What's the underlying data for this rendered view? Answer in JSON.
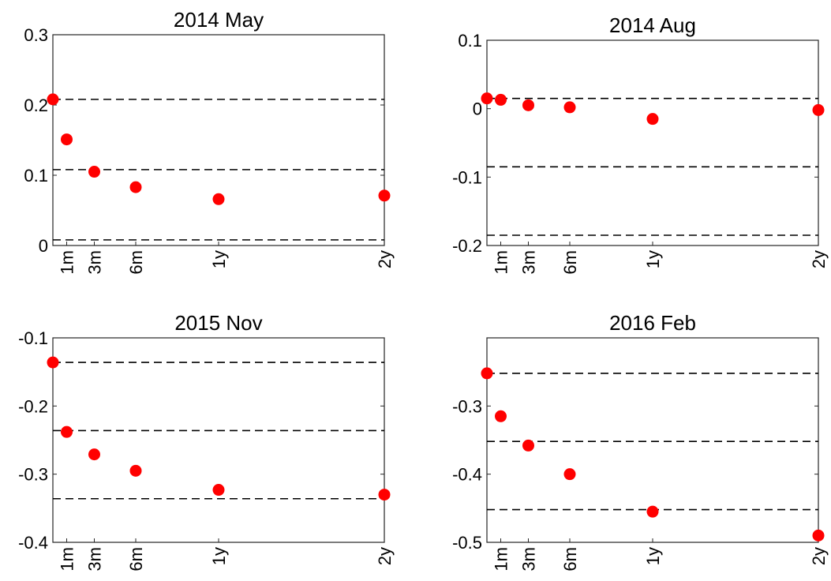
{
  "chart_data": [
    {
      "type": "scatter",
      "title": "2014 May",
      "x": [
        "1m",
        "3m",
        "6m",
        "1y",
        "2y"
      ],
      "xticks": [
        "1m",
        "3m",
        "6m",
        "1y",
        "2y"
      ],
      "points": [
        {
          "x": 0,
          "y": 0.208
        },
        {
          "x": 1,
          "y": 0.151
        },
        {
          "x": 3,
          "y": 0.105
        },
        {
          "x": 6,
          "y": 0.083
        },
        {
          "x": 12,
          "y": 0.066
        },
        {
          "x": 24,
          "y": 0.071
        }
      ],
      "hlines": [
        0.208,
        0.108,
        0.008
      ],
      "ylim": [
        0,
        0.3
      ],
      "yticks": [
        0,
        0.1,
        0.2,
        0.3
      ],
      "ytick_labels": [
        "0",
        "0.1",
        "0.2",
        "0.3"
      ],
      "color": "#ff0000"
    },
    {
      "type": "scatter",
      "title": "2014 Aug",
      "x": [
        "1m",
        "3m",
        "6m",
        "1y",
        "2y"
      ],
      "xticks": [
        "1m",
        "3m",
        "6m",
        "1y",
        "2y"
      ],
      "points": [
        {
          "x": 0,
          "y": 0.015
        },
        {
          "x": 1,
          "y": 0.013
        },
        {
          "x": 3,
          "y": 0.005
        },
        {
          "x": 6,
          "y": 0.002
        },
        {
          "x": 12,
          "y": -0.015
        },
        {
          "x": 24,
          "y": -0.002
        }
      ],
      "hlines": [
        0.015,
        -0.085,
        -0.185
      ],
      "ylim": [
        -0.2,
        0.1
      ],
      "yticks": [
        -0.2,
        -0.1,
        0,
        0.1
      ],
      "ytick_labels": [
        "-0.2",
        "-0.1",
        "0",
        "0.1"
      ],
      "color": "#ff0000"
    },
    {
      "type": "scatter",
      "title": "2015 Nov",
      "x": [
        "1m",
        "3m",
        "6m",
        "1y",
        "2y"
      ],
      "xticks": [
        "1m",
        "3m",
        "6m",
        "1y",
        "2y"
      ],
      "points": [
        {
          "x": 0,
          "y": -0.136
        },
        {
          "x": 1,
          "y": -0.238
        },
        {
          "x": 3,
          "y": -0.271
        },
        {
          "x": 6,
          "y": -0.295
        },
        {
          "x": 12,
          "y": -0.323
        },
        {
          "x": 24,
          "y": -0.33
        }
      ],
      "hlines": [
        -0.136,
        -0.236,
        -0.336
      ],
      "ylim": [
        -0.4,
        -0.1
      ],
      "yticks": [
        -0.4,
        -0.3,
        -0.2,
        -0.1
      ],
      "ytick_labels": [
        "-0.4",
        "-0.3",
        "-0.2",
        "-0.1"
      ],
      "color": "#ff0000"
    },
    {
      "type": "scatter",
      "title": "2016 Feb",
      "x": [
        "1m",
        "3m",
        "6m",
        "1y",
        "2y"
      ],
      "xticks": [
        "1m",
        "3m",
        "6m",
        "1y",
        "2y"
      ],
      "points": [
        {
          "x": 0,
          "y": -0.252
        },
        {
          "x": 1,
          "y": -0.315
        },
        {
          "x": 3,
          "y": -0.358
        },
        {
          "x": 6,
          "y": -0.4
        },
        {
          "x": 12,
          "y": -0.455
        },
        {
          "x": 24,
          "y": -0.49
        }
      ],
      "hlines": [
        -0.252,
        -0.352,
        -0.452
      ],
      "ylim": [
        -0.5,
        -0.2
      ],
      "yticks": [
        -0.5,
        -0.4,
        -0.3
      ],
      "ytick_labels": [
        "-0.5",
        "-0.4",
        "-0.3"
      ],
      "color": "#ff0000"
    }
  ]
}
